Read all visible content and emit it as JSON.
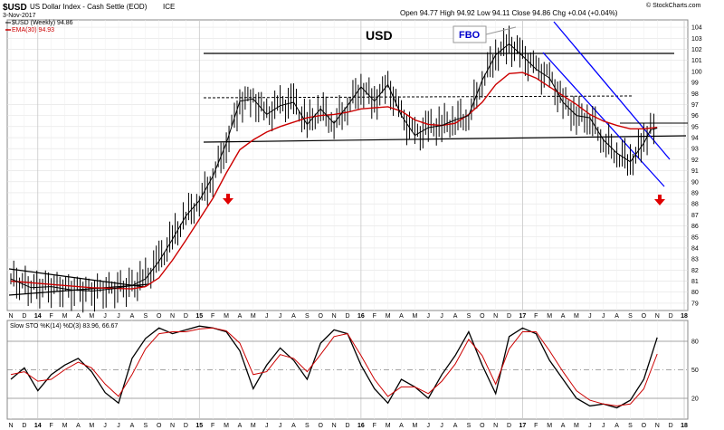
{
  "header": {
    "symbol": "$USD",
    "name": "US Dollar Index - Cash Settle (EOD)",
    "exchange": "ICE",
    "date": "3-Nov-2017",
    "legend_price": "$USD (Weekly) 94.86",
    "legend_ema": "EMA(30) 94.93",
    "ohlc": "Open 94.77  High 94.92  Low 94.11  Close 94.86  Chg +0.04 (+0.04%)",
    "copyright": "© StockCharts.com"
  },
  "annotations": {
    "title": "USD",
    "fbo": "FBO"
  },
  "lower_panel": {
    "label": "Slow STO %K(14) %D(3) 83.96, 66.67"
  },
  "colors": {
    "price": "#000000",
    "ema": "#cc0000",
    "channel": "#0000ff",
    "arrow": "#e00000",
    "fbo_text": "#0000cc",
    "grid": "#d8d8d8"
  },
  "chart_data": [
    {
      "type": "line",
      "title": "USD",
      "x_axis_labels": [
        "N",
        "D",
        "14",
        "F",
        "M",
        "A",
        "M",
        "J",
        "J",
        "A",
        "S",
        "O",
        "N",
        "D",
        "15",
        "F",
        "M",
        "A",
        "M",
        "J",
        "J",
        "A",
        "S",
        "O",
        "N",
        "D",
        "16",
        "F",
        "M",
        "A",
        "M",
        "J",
        "J",
        "A",
        "S",
        "O",
        "N",
        "D",
        "17",
        "F",
        "M",
        "A",
        "M",
        "J",
        "J",
        "A",
        "S",
        "O",
        "N",
        "D",
        "18"
      ],
      "y_ticks": [
        79,
        80,
        81,
        82,
        83,
        84,
        85,
        86,
        87,
        88,
        89,
        90,
        91,
        92,
        93,
        94,
        95,
        96,
        97,
        98,
        99,
        100,
        101,
        102,
        103,
        104
      ],
      "ylim": [
        78.5,
        104.5
      ],
      "series": [
        {
          "name": "$USD (Weekly)",
          "x": [
            0,
            1.5,
            3,
            4.5,
            6,
            7.5,
            9,
            10,
            11,
            12,
            13,
            14,
            15,
            16,
            17,
            18,
            19,
            20,
            21,
            22,
            23,
            24,
            25,
            26,
            27,
            28,
            29,
            30,
            31,
            32,
            33,
            34,
            35,
            36,
            37,
            38,
            39,
            40,
            41,
            42,
            43,
            44,
            45,
            46,
            47,
            47.5,
            48
          ],
          "y": [
            81.2,
            80.4,
            80.5,
            80.2,
            80.1,
            80.3,
            80.6,
            81.2,
            82.8,
            84.8,
            86.9,
            88.3,
            90.5,
            93.5,
            97.3,
            97.5,
            96.1,
            96.9,
            97.2,
            95.2,
            96.6,
            95.3,
            96.9,
            98.6,
            97.3,
            98.8,
            96.0,
            94.2,
            94.9,
            95.1,
            95.6,
            96.0,
            99.2,
            101.5,
            102.5,
            101.4,
            100.2,
            99.4,
            97.2,
            96.0,
            95.8,
            93.8,
            92.6,
            91.8,
            93.5,
            94.7,
            94.86
          ]
        },
        {
          "name": "EMA(30)",
          "x": [
            0,
            3,
            6,
            9,
            10,
            11,
            12,
            13,
            14,
            15,
            16,
            17,
            18,
            19,
            20,
            21,
            22,
            23,
            24,
            25,
            26,
            27,
            28,
            29,
            30,
            31,
            32,
            33,
            34,
            35,
            36,
            37,
            38,
            39,
            40,
            41,
            42,
            43,
            44,
            45,
            46,
            47,
            48
          ],
          "y": [
            81.0,
            80.7,
            80.4,
            80.3,
            80.5,
            81.3,
            82.9,
            84.7,
            86.6,
            88.5,
            90.8,
            92.9,
            93.8,
            94.5,
            95.0,
            95.4,
            95.8,
            96.0,
            96.1,
            96.3,
            96.6,
            96.7,
            96.8,
            96.4,
            95.6,
            95.2,
            95.1,
            95.3,
            96.1,
            97.2,
            98.8,
            99.8,
            99.9,
            99.4,
            98.6,
            97.8,
            97.0,
            96.1,
            95.5,
            95.1,
            94.8,
            94.8,
            94.93
          ]
        }
      ],
      "annotations": [
        "USD",
        "FBO"
      ]
    },
    {
      "type": "line",
      "title": "Slow STO %K(14) %D(3) 83.96, 66.67",
      "x_axis_labels": [
        "N",
        "D",
        "14",
        "F",
        "M",
        "A",
        "M",
        "J",
        "J",
        "A",
        "S",
        "O",
        "N",
        "D",
        "15",
        "F",
        "M",
        "A",
        "M",
        "J",
        "J",
        "A",
        "S",
        "O",
        "N",
        "D",
        "16",
        "F",
        "M",
        "A",
        "M",
        "J",
        "J",
        "A",
        "S",
        "O",
        "N",
        "D",
        "17",
        "F",
        "M",
        "A",
        "M",
        "J",
        "J",
        "A",
        "S",
        "O",
        "N",
        "D",
        "18"
      ],
      "y_ticks": [
        20,
        50,
        80
      ],
      "ylim": [
        0,
        100
      ],
      "series": [
        {
          "name": "%K(14)",
          "x": [
            0,
            1,
            2,
            3,
            4,
            5,
            6,
            7,
            8,
            9,
            10,
            11,
            12,
            13,
            14,
            15,
            16,
            17,
            18,
            19,
            20,
            21,
            22,
            23,
            24,
            25,
            26,
            27,
            28,
            29,
            30,
            31,
            32,
            33,
            34,
            35,
            36,
            37,
            38,
            39,
            40,
            41,
            42,
            43,
            44,
            45,
            46,
            47,
            48
          ],
          "y": [
            40,
            52,
            28,
            45,
            55,
            62,
            48,
            26,
            15,
            62,
            83,
            94,
            88,
            92,
            96,
            94,
            90,
            70,
            30,
            55,
            73,
            60,
            40,
            78,
            92,
            88,
            55,
            30,
            15,
            40,
            32,
            20,
            45,
            65,
            90,
            55,
            25,
            85,
            94,
            88,
            60,
            40,
            20,
            12,
            14,
            10,
            18,
            40,
            83.96
          ]
        },
        {
          "name": "%D(3)",
          "x": [
            0,
            1,
            2,
            3,
            4,
            5,
            6,
            7,
            8,
            9,
            10,
            11,
            12,
            13,
            14,
            15,
            16,
            17,
            18,
            19,
            20,
            21,
            22,
            23,
            24,
            25,
            26,
            27,
            28,
            29,
            30,
            31,
            32,
            33,
            34,
            35,
            36,
            37,
            38,
            39,
            40,
            41,
            42,
            43,
            44,
            45,
            46,
            47,
            48
          ],
          "y": [
            45,
            48,
            38,
            40,
            50,
            58,
            52,
            35,
            22,
            45,
            72,
            88,
            90,
            90,
            93,
            94,
            91,
            78,
            45,
            48,
            66,
            62,
            48,
            66,
            85,
            88,
            65,
            40,
            22,
            32,
            32,
            25,
            38,
            56,
            82,
            65,
            35,
            72,
            90,
            90,
            70,
            48,
            28,
            18,
            14,
            12,
            14,
            30,
            66.67
          ]
        }
      ]
    }
  ]
}
